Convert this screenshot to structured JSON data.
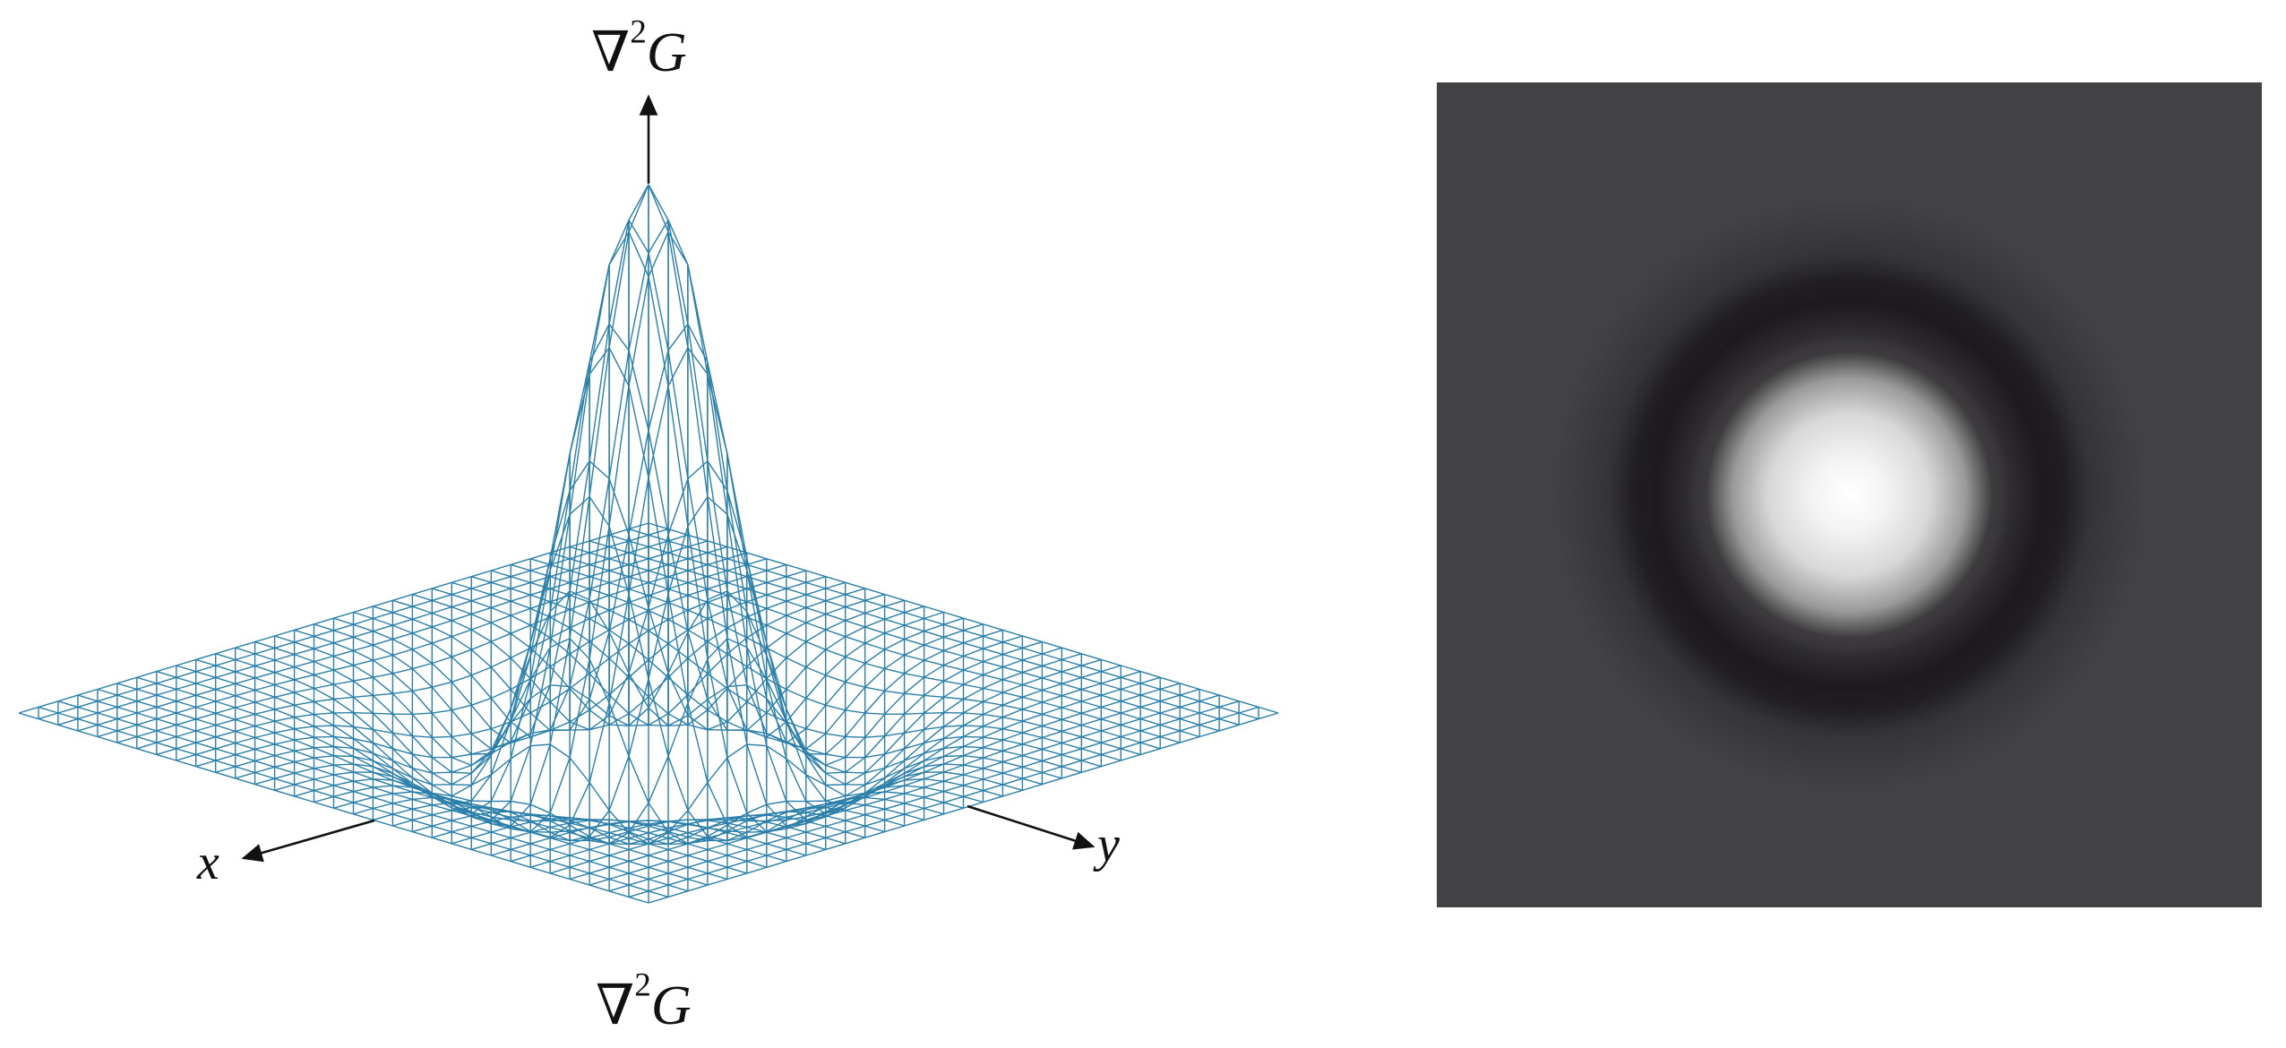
{
  "labels": {
    "top": "∇²G",
    "top_nabla": "∇",
    "top_exp": "2",
    "top_var": "G",
    "bottom_nabla": "∇",
    "bottom_exp": "2",
    "bottom_var": "G",
    "x_axis": "x",
    "y_axis": "y"
  },
  "colors": {
    "mesh": "#2b7fa8",
    "axis": "#111111",
    "image_background": "#424244",
    "image_center": "#ffffff",
    "image_ring": "#1c1a1c"
  },
  "surface": {
    "function": "laplacian-of-gaussian",
    "grid_divisions": 32
  }
}
